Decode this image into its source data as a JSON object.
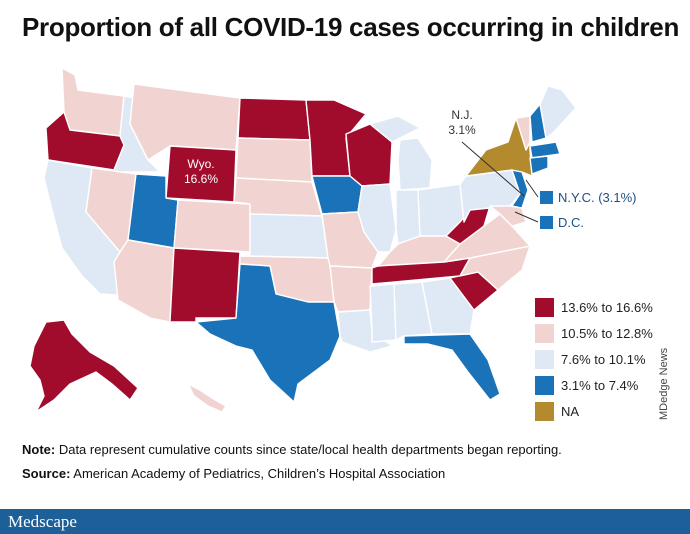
{
  "title": "Proportion of all COVID-19 cases occurring in children",
  "colors": {
    "c1": "#a10c2c",
    "c2": "#f1d4d2",
    "c3": "#dfe9f5",
    "c4": "#1a72b8",
    "na": "#b38a2e",
    "footer": "#1d5f99"
  },
  "legend": [
    {
      "label": "13.6% to 16.6%",
      "color": "#a10c2c"
    },
    {
      "label": "10.5% to 12.8%",
      "color": "#f1d4d2"
    },
    {
      "label": "7.6% to 10.1%",
      "color": "#dfe9f5"
    },
    {
      "label": "3.1% to 7.4%",
      "color": "#1a72b8"
    },
    {
      "label": "NA",
      "color": "#b38a2e"
    }
  ],
  "callouts": {
    "wyo_name": "Wyo.",
    "wyo_value": "16.6%",
    "nj_name": "N.J.",
    "nj_value": "3.1%",
    "nyc": "N.Y.C. (3.1%)",
    "dc": "D.C."
  },
  "side_credit": "MDedge News",
  "note_label": "Note:",
  "note_text": " Data represent cumulative counts since state/local health departments began reporting.",
  "source_label": "Source:",
  "source_text": " American Academy of Pediatrics, Children’s Hospital Association",
  "footer_brand": "Medscape"
}
